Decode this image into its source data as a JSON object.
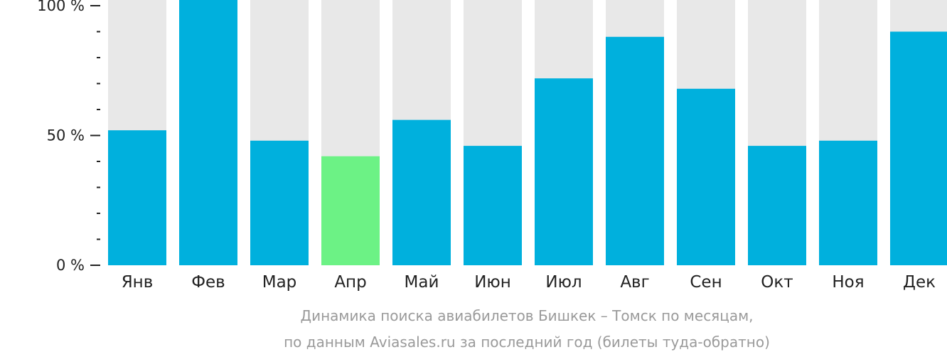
{
  "chart_data": {
    "type": "bar",
    "caption": [
      "Динамика поиска авиабилетов Бишкек – Томск по месяцам,",
      "по данным Aviasales.ru за последний год (билеты туда-обратно)"
    ],
    "categories": [
      "Янв",
      "Фев",
      "Мар",
      "Апр",
      "Май",
      "Июн",
      "Июл",
      "Авг",
      "Сен",
      "Окт",
      "Ноя",
      "Дек"
    ],
    "values": [
      52,
      100,
      48,
      42,
      56,
      46,
      72,
      88,
      68,
      46,
      48,
      90
    ],
    "highlight_index": 3,
    "ylim": [
      0,
      100
    ],
    "yticks": [
      {
        "value": 0,
        "label": "0 %"
      },
      {
        "value": 50,
        "label": "50 %"
      },
      {
        "value": 100,
        "label": "100 %"
      }
    ],
    "minor_tick_step": 10,
    "grid": false,
    "colors": {
      "bar": "#00b0dd",
      "highlight": "#6cf285",
      "background_bar": "#e8e8e8",
      "axis": "#222222",
      "caption": "#9a9a9a"
    }
  }
}
